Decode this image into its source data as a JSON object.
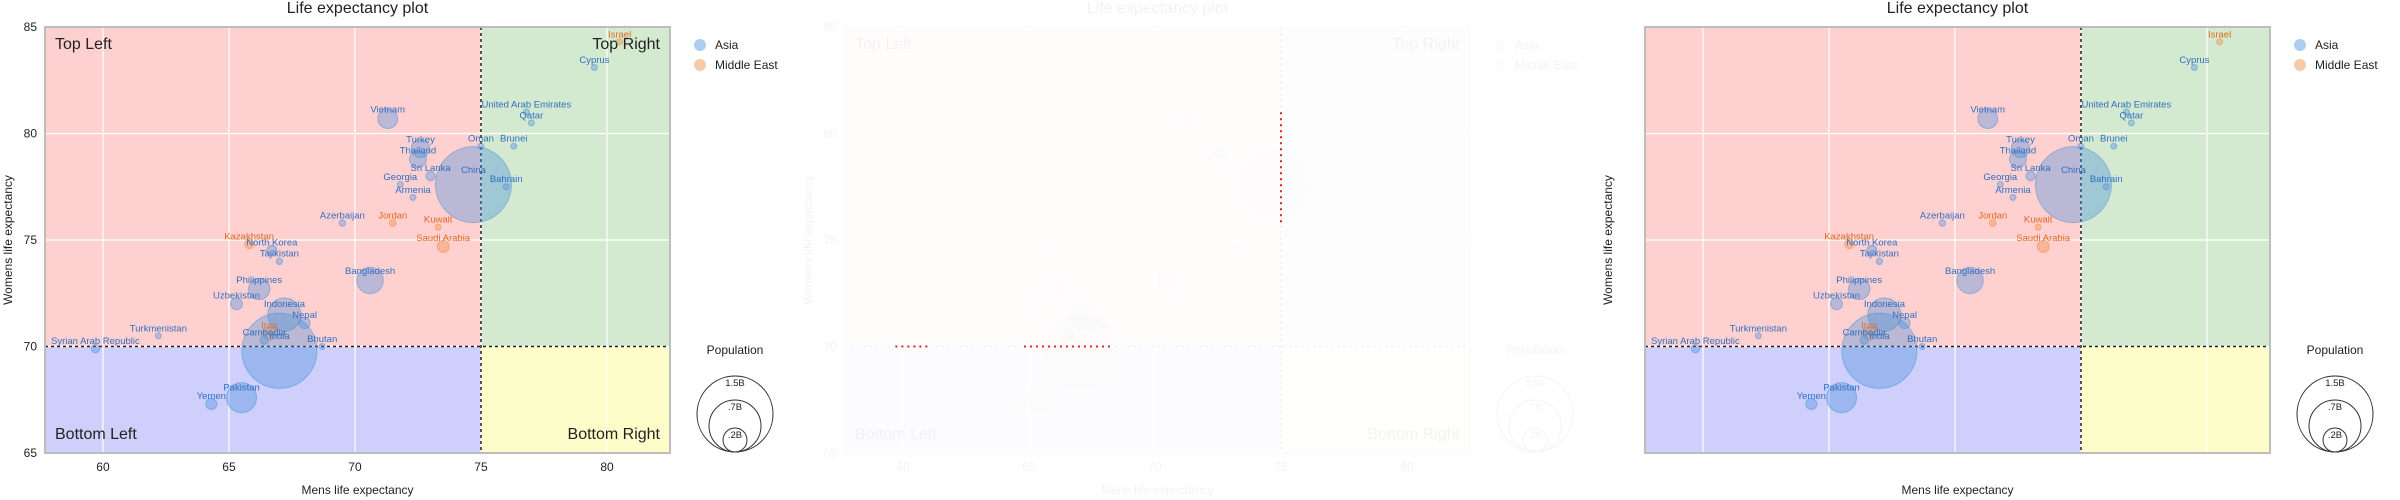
{
  "chart_data": [
    {
      "type": "scatter",
      "title": "Life expectancy plot",
      "xlabel": "Mens life expectancy",
      "ylabel": "Womens life expectancy",
      "xlim": [
        57.7,
        82.5
      ],
      "ylim": [
        65,
        85
      ],
      "xticks": [
        "60",
        "65",
        "70",
        "75",
        "80"
      ],
      "yticks": [
        "65",
        "70",
        "75",
        "80",
        "85"
      ],
      "threshold_x": 75,
      "threshold_y": 70,
      "quadrants": {
        "top_left": "Top Left",
        "top_right": "Top Right",
        "bottom_left": "Bottom Left",
        "bottom_right": "Bottom Right"
      },
      "quadrant_colors": {
        "top_left": "#ffd0d0",
        "top_right": "#d4ead0",
        "bottom_left": "#cfcffc",
        "bottom_right": "#fdfdc9"
      },
      "grid": true,
      "legend_position": "outside-right",
      "series": [
        {
          "name": "Asia",
          "color": "#4a90d9"
        },
        {
          "name": "Middle East",
          "color": "#f08a3c"
        }
      ],
      "size_legend": {
        "title": "Population",
        "labels": [
          "1.5B",
          ".7B",
          ".2B"
        ]
      },
      "points": [
        {
          "label": "Israel",
          "x": 80.5,
          "y": 84.3,
          "pop": 0.009,
          "group": "Middle East"
        },
        {
          "label": "Cyprus",
          "x": 79.5,
          "y": 83.1,
          "pop": 0.001,
          "group": "Asia"
        },
        {
          "label": "United Arab Emirates",
          "x": 76.8,
          "y": 81.0,
          "pop": 0.01,
          "group": "Asia"
        },
        {
          "label": "Qatar",
          "x": 77.0,
          "y": 80.5,
          "pop": 0.003,
          "group": "Asia"
        },
        {
          "label": "Vietnam",
          "x": 71.3,
          "y": 80.7,
          "pop": 0.097,
          "group": "Asia"
        },
        {
          "label": "Turkey",
          "x": 72.6,
          "y": 79.3,
          "pop": 0.083,
          "group": "Asia"
        },
        {
          "label": "Oman",
          "x": 75.0,
          "y": 79.4,
          "pop": 0.005,
          "group": "Asia"
        },
        {
          "label": "Brunei",
          "x": 76.3,
          "y": 79.4,
          "pop": 0.0004,
          "group": "Asia"
        },
        {
          "label": "Thailand",
          "x": 72.5,
          "y": 78.8,
          "pop": 0.07,
          "group": "Asia"
        },
        {
          "label": "Sri Lanka",
          "x": 73.0,
          "y": 78.0,
          "pop": 0.022,
          "group": "Asia"
        },
        {
          "label": "Georgia",
          "x": 71.8,
          "y": 77.6,
          "pop": 0.004,
          "group": "Asia"
        },
        {
          "label": "Armenia",
          "x": 72.3,
          "y": 77.0,
          "pop": 0.003,
          "group": "Asia"
        },
        {
          "label": "China",
          "x": 74.7,
          "y": 77.6,
          "pop": 1.41,
          "group": "Asia"
        },
        {
          "label": "Bahrain",
          "x": 76.0,
          "y": 77.5,
          "pop": 0.002,
          "group": "Asia"
        },
        {
          "label": "Azerbaijan",
          "x": 69.5,
          "y": 75.8,
          "pop": 0.01,
          "group": "Asia"
        },
        {
          "label": "Jordan",
          "x": 71.5,
          "y": 75.8,
          "pop": 0.011,
          "group": "Middle East"
        },
        {
          "label": "Kuwait",
          "x": 73.3,
          "y": 75.6,
          "pop": 0.004,
          "group": "Middle East"
        },
        {
          "label": "Saudi Arabia",
          "x": 73.5,
          "y": 74.7,
          "pop": 0.035,
          "group": "Middle East"
        },
        {
          "label": "Kazakhstan",
          "x": 65.8,
          "y": 74.8,
          "pop": 0.019,
          "group": "Middle East"
        },
        {
          "label": "North Korea",
          "x": 66.7,
          "y": 74.5,
          "pop": 0.026,
          "group": "Asia"
        },
        {
          "label": "Tajikistan",
          "x": 67.0,
          "y": 74.0,
          "pop": 0.01,
          "group": "Asia"
        },
        {
          "label": "Bangladesh",
          "x": 70.6,
          "y": 73.1,
          "pop": 0.17,
          "group": "Asia"
        },
        {
          "label": "Philippines",
          "x": 66.2,
          "y": 72.7,
          "pop": 0.11,
          "group": "Asia"
        },
        {
          "label": "Uzbekistan",
          "x": 65.3,
          "y": 72.0,
          "pop": 0.034,
          "group": "Asia"
        },
        {
          "label": "Indonesia",
          "x": 67.2,
          "y": 71.5,
          "pop": 0.27,
          "group": "Asia"
        },
        {
          "label": "Nepal",
          "x": 68.0,
          "y": 71.1,
          "pop": 0.03,
          "group": "Asia"
        },
        {
          "label": "Iraq",
          "x": 66.6,
          "y": 70.6,
          "pop": 0.041,
          "group": "Middle East"
        },
        {
          "label": "Cambodia",
          "x": 66.4,
          "y": 70.3,
          "pop": 0.017,
          "group": "Asia"
        },
        {
          "label": "Bhutan",
          "x": 68.7,
          "y": 70.0,
          "pop": 0.001,
          "group": "Asia"
        },
        {
          "label": "India",
          "x": 67.0,
          "y": 69.8,
          "pop": 1.38,
          "group": "Asia"
        },
        {
          "label": "Turkmenistan",
          "x": 62.2,
          "y": 70.5,
          "pop": 0.006,
          "group": "Asia"
        },
        {
          "label": "Syrian Arab Republic",
          "x": 59.7,
          "y": 69.9,
          "pop": 0.017,
          "group": "Asia"
        },
        {
          "label": "Yemen",
          "x": 64.3,
          "y": 67.3,
          "pop": 0.03,
          "group": "Asia"
        },
        {
          "label": "Pakistan",
          "x": 65.5,
          "y": 67.6,
          "pop": 0.22,
          "group": "Asia"
        }
      ]
    },
    {
      "type": "scatter",
      "title": "Life expectancy plot",
      "xlabel": "Mens life expectancy",
      "ylabel": "Womens life expectancy",
      "faded": true,
      "xlim": [
        57.7,
        82.5
      ],
      "ylim": [
        65,
        85
      ],
      "xticks": [
        "60",
        "65",
        "70",
        "75",
        "80"
      ],
      "yticks": [
        "65",
        "70",
        "75",
        "80",
        "85"
      ],
      "threshold_x": 75,
      "threshold_y": 70,
      "quadrants": {
        "top_left": "Top Left",
        "top_right": "Top Right",
        "bottom_left": "Bottom Left",
        "bottom_right": "Bottom Right"
      },
      "legend": [
        "Asia",
        "Middle East"
      ],
      "size_legend": {
        "title": "Population",
        "labels": [
          "1.5B",
          ".7B",
          ".2B"
        ]
      },
      "highlight_color": "#d62728"
    },
    {
      "type": "scatter",
      "title": "Life expectancy plot",
      "xlabel": "Mens life expectancy",
      "ylabel": "Womens life expectancy",
      "note": "same data as first chart"
    }
  ]
}
